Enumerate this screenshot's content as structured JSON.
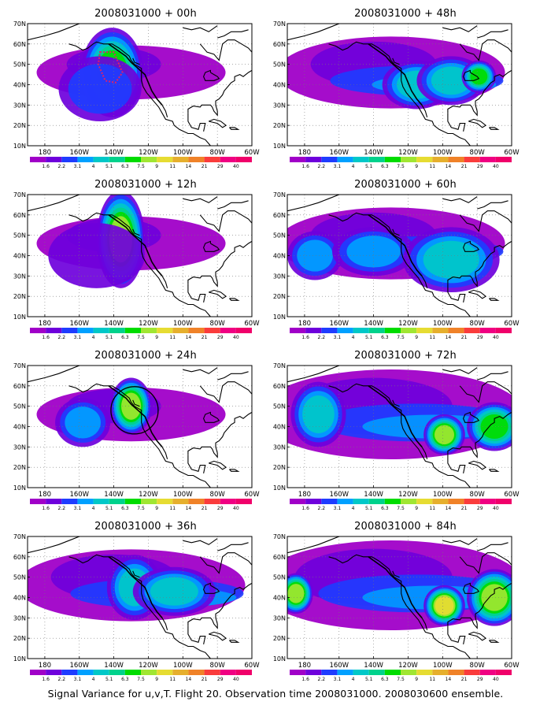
{
  "caption": "Signal Variance for u,v,T. Flight 20. Observation time 2008031000. 2008030600 ensemble.",
  "colorbar": {
    "labels": [
      "1.6",
      "2.2",
      "3.1",
      "4",
      "5.1",
      "6.3",
      "7.5",
      "9",
      "11",
      "14",
      "21",
      "29",
      "40"
    ],
    "colors": [
      "#a000c8",
      "#6e00dc",
      "#1e3cff",
      "#00a0ff",
      "#00c8c8",
      "#00d28c",
      "#00dc00",
      "#a0e632",
      "#e6dc32",
      "#e6af2d",
      "#f08228",
      "#fa3c3c",
      "#f00082"
    ]
  },
  "axes": {
    "y_ticks": [
      "10N",
      "20N",
      "30N",
      "40N",
      "50N",
      "60N",
      "70N"
    ],
    "x_ticks": [
      "180",
      "160W",
      "140W",
      "120W",
      "100W",
      "80W",
      "60W"
    ]
  },
  "panels": [
    {
      "id": "p00",
      "title": "2008031000 + 00h",
      "lead_hours": 0,
      "level": 1,
      "blobs": [
        {
          "lon": -141,
          "lat": 46,
          "rx": 9,
          "ry": 11,
          "lvl": 6
        },
        {
          "lon": -148,
          "lat": 38,
          "rx": 12,
          "ry": 8,
          "lvl": 2
        }
      ],
      "features": [
        "dotted-box"
      ]
    },
    {
      "id": "p48",
      "title": "2008031000 + 48h",
      "lead_hours": 48,
      "level": 2,
      "blobs": [
        {
          "lon": -115,
          "lat": 40,
          "rx": 10,
          "ry": 6,
          "lvl": 4
        },
        {
          "lon": -95,
          "lat": 42,
          "rx": 10,
          "ry": 6,
          "lvl": 4
        },
        {
          "lon": -79,
          "lat": 44,
          "rx": 5,
          "ry": 4,
          "lvl": 6
        }
      ],
      "features": []
    },
    {
      "id": "p12",
      "title": "2008031000 + 12h",
      "lead_hours": 12,
      "level": 1,
      "blobs": [
        {
          "lon": -136,
          "lat": 48,
          "rx": 7,
          "ry": 12,
          "lvl": 7
        },
        {
          "lon": -150,
          "lat": 40,
          "rx": 14,
          "ry": 8,
          "lvl": 1
        }
      ],
      "features": []
    },
    {
      "id": "p60",
      "title": "2008031000 + 60h",
      "lead_hours": 60,
      "level": 2,
      "blobs": [
        {
          "lon": -174,
          "lat": 40,
          "rx": 8,
          "ry": 6,
          "lvl": 3
        },
        {
          "lon": -140,
          "lat": 42,
          "rx": 12,
          "ry": 6,
          "lvl": 3
        },
        {
          "lon": -95,
          "lat": 38,
          "rx": 14,
          "ry": 8,
          "lvl": 4
        }
      ],
      "features": []
    },
    {
      "id": "p24",
      "title": "2008031000 + 24h",
      "lead_hours": 24,
      "level": 1,
      "blobs": [
        {
          "lon": -130,
          "lat": 50,
          "rx": 6,
          "ry": 7,
          "lvl": 7
        },
        {
          "lon": -158,
          "lat": 42,
          "rx": 8,
          "ry": 6,
          "lvl": 3
        }
      ],
      "features": [
        "circle"
      ]
    },
    {
      "id": "p72",
      "title": "2008031000 + 72h",
      "lead_hours": 72,
      "level": 3,
      "blobs": [
        {
          "lon": -172,
          "lat": 46,
          "rx": 8,
          "ry": 8,
          "lvl": 4
        },
        {
          "lon": -99,
          "lat": 36,
          "rx": 6,
          "ry": 5,
          "lvl": 7
        },
        {
          "lon": -70,
          "lat": 40,
          "rx": 8,
          "ry": 6,
          "lvl": 6
        }
      ],
      "features": []
    },
    {
      "id": "p36",
      "title": "2008031000 + 36h",
      "lead_hours": 36,
      "level": 2,
      "blobs": [
        {
          "lon": -128,
          "lat": 45,
          "rx": 8,
          "ry": 8,
          "lvl": 4
        },
        {
          "lon": -105,
          "lat": 43,
          "rx": 12,
          "ry": 6,
          "lvl": 4
        }
      ],
      "features": []
    },
    {
      "id": "p84",
      "title": "2008031000 + 84h",
      "lead_hours": 84,
      "level": 3,
      "blobs": [
        {
          "lon": -185,
          "lat": 42,
          "rx": 5,
          "ry": 5,
          "lvl": 7
        },
        {
          "lon": -99,
          "lat": 36,
          "rx": 6,
          "ry": 5,
          "lvl": 8
        },
        {
          "lon": -70,
          "lat": 40,
          "rx": 8,
          "ry": 7,
          "lvl": 7
        }
      ],
      "features": []
    }
  ]
}
